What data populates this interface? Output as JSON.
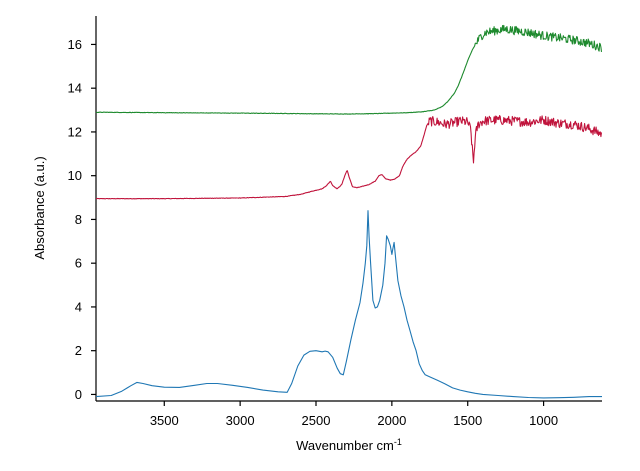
{
  "chart_data": {
    "type": "line",
    "title": "",
    "xlabel": "Wavenumber cm",
    "xlabel_superscript": "-1",
    "ylabel": "Absorbance (a.u.)",
    "xlim": [
      3950,
      615
    ],
    "ylim": [
      -0.3,
      17.3
    ],
    "x_reversed": true,
    "grid": false,
    "legend": "none",
    "x_ticks": [
      3500,
      3000,
      2500,
      2000,
      1500,
      1000
    ],
    "x_tick_labels": [
      "3500",
      "3000",
      "2500",
      "2000",
      "1500",
      "1000"
    ],
    "y_ticks": [
      0,
      2,
      4,
      6,
      8,
      10,
      12,
      14,
      16
    ],
    "y_tick_labels": [
      "0",
      "2",
      "4",
      "6",
      "8",
      "10",
      "12",
      "14",
      "16"
    ],
    "series": [
      {
        "color": "#1f77b4",
        "noise": 0.0,
        "points": [
          [
            3950,
            -0.1
          ],
          [
            3850,
            -0.05
          ],
          [
            3780,
            0.15
          ],
          [
            3720,
            0.4
          ],
          [
            3680,
            0.55
          ],
          [
            3640,
            0.5
          ],
          [
            3580,
            0.4
          ],
          [
            3500,
            0.33
          ],
          [
            3400,
            0.32
          ],
          [
            3300,
            0.42
          ],
          [
            3220,
            0.5
          ],
          [
            3150,
            0.5
          ],
          [
            3050,
            0.42
          ],
          [
            2950,
            0.32
          ],
          [
            2850,
            0.2
          ],
          [
            2750,
            0.12
          ],
          [
            2690,
            0.1
          ],
          [
            2660,
            0.5
          ],
          [
            2620,
            1.3
          ],
          [
            2580,
            1.8
          ],
          [
            2540,
            1.97
          ],
          [
            2500,
            2.0
          ],
          [
            2460,
            1.95
          ],
          [
            2440,
            1.98
          ],
          [
            2420,
            1.95
          ],
          [
            2390,
            1.7
          ],
          [
            2360,
            1.2
          ],
          [
            2340,
            0.95
          ],
          [
            2320,
            0.9
          ],
          [
            2300,
            1.5
          ],
          [
            2270,
            2.5
          ],
          [
            2240,
            3.4
          ],
          [
            2210,
            4.2
          ],
          [
            2190,
            5.1
          ],
          [
            2175,
            6.0
          ],
          [
            2165,
            6.8
          ],
          [
            2157,
            8.4
          ],
          [
            2150,
            7.2
          ],
          [
            2140,
            6.0
          ],
          [
            2125,
            4.3
          ],
          [
            2110,
            3.95
          ],
          [
            2095,
            4.0
          ],
          [
            2080,
            4.3
          ],
          [
            2060,
            5.0
          ],
          [
            2045,
            6.0
          ],
          [
            2035,
            7.25
          ],
          [
            2025,
            7.1
          ],
          [
            2010,
            6.8
          ],
          [
            2000,
            6.4
          ],
          [
            1995,
            6.6
          ],
          [
            1985,
            6.95
          ],
          [
            1975,
            6.2
          ],
          [
            1960,
            5.2
          ],
          [
            1940,
            4.5
          ],
          [
            1920,
            4.0
          ],
          [
            1900,
            3.4
          ],
          [
            1880,
            2.9
          ],
          [
            1860,
            2.4
          ],
          [
            1840,
            2.0
          ],
          [
            1820,
            1.4
          ],
          [
            1800,
            1.1
          ],
          [
            1780,
            0.9
          ],
          [
            1750,
            0.8
          ],
          [
            1700,
            0.65
          ],
          [
            1650,
            0.48
          ],
          [
            1600,
            0.3
          ],
          [
            1550,
            0.2
          ],
          [
            1500,
            0.12
          ],
          [
            1450,
            0.05
          ],
          [
            1400,
            0.0
          ],
          [
            1300,
            -0.05
          ],
          [
            1200,
            -0.1
          ],
          [
            1100,
            -0.14
          ],
          [
            1000,
            -0.16
          ],
          [
            900,
            -0.15
          ],
          [
            800,
            -0.13
          ],
          [
            700,
            -0.1
          ],
          [
            615,
            -0.1
          ]
        ]
      },
      {
        "color": "#c0143c",
        "noise": 0.22,
        "noise_from": 1760,
        "points": [
          [
            3950,
            8.95
          ],
          [
            3500,
            8.95
          ],
          [
            3000,
            8.98
          ],
          [
            2700,
            9.05
          ],
          [
            2600,
            9.15
          ],
          [
            2520,
            9.3
          ],
          [
            2460,
            9.4
          ],
          [
            2430,
            9.55
          ],
          [
            2405,
            9.75
          ],
          [
            2390,
            9.55
          ],
          [
            2360,
            9.4
          ],
          [
            2330,
            9.6
          ],
          [
            2310,
            10.0
          ],
          [
            2295,
            10.25
          ],
          [
            2280,
            9.9
          ],
          [
            2260,
            9.5
          ],
          [
            2230,
            9.45
          ],
          [
            2200,
            9.5
          ],
          [
            2150,
            9.6
          ],
          [
            2110,
            9.75
          ],
          [
            2085,
            10.0
          ],
          [
            2065,
            10.05
          ],
          [
            2040,
            9.85
          ],
          [
            2010,
            9.8
          ],
          [
            1980,
            9.85
          ],
          [
            1950,
            10.0
          ],
          [
            1930,
            10.4
          ],
          [
            1900,
            10.75
          ],
          [
            1870,
            10.95
          ],
          [
            1840,
            11.1
          ],
          [
            1810,
            11.35
          ],
          [
            1790,
            11.8
          ],
          [
            1770,
            12.3
          ],
          [
            1750,
            12.5
          ],
          [
            1700,
            12.45
          ],
          [
            1650,
            12.35
          ],
          [
            1600,
            12.4
          ],
          [
            1550,
            12.5
          ],
          [
            1500,
            12.45
          ],
          [
            1480,
            12.1
          ],
          [
            1470,
            11.2
          ],
          [
            1462,
            10.6
          ],
          [
            1455,
            11.4
          ],
          [
            1445,
            12.0
          ],
          [
            1430,
            12.35
          ],
          [
            1400,
            12.5
          ],
          [
            1300,
            12.55
          ],
          [
            1200,
            12.5
          ],
          [
            1100,
            12.45
          ],
          [
            1000,
            12.55
          ],
          [
            900,
            12.4
          ],
          [
            800,
            12.35
          ],
          [
            700,
            12.15
          ],
          [
            615,
            11.9
          ]
        ]
      },
      {
        "color": "#1e8a2e",
        "noise": 0.2,
        "noise_from": 1450,
        "points": [
          [
            3950,
            12.9
          ],
          [
            3500,
            12.88
          ],
          [
            3000,
            12.86
          ],
          [
            2500,
            12.83
          ],
          [
            2300,
            12.82
          ],
          [
            2100,
            12.84
          ],
          [
            1900,
            12.88
          ],
          [
            1800,
            12.92
          ],
          [
            1720,
            13.0
          ],
          [
            1670,
            13.15
          ],
          [
            1630,
            13.4
          ],
          [
            1590,
            13.75
          ],
          [
            1560,
            14.15
          ],
          [
            1530,
            14.7
          ],
          [
            1500,
            15.25
          ],
          [
            1470,
            15.75
          ],
          [
            1440,
            16.1
          ],
          [
            1410,
            16.4
          ],
          [
            1380,
            16.55
          ],
          [
            1340,
            16.6
          ],
          [
            1300,
            16.65
          ],
          [
            1250,
            16.7
          ],
          [
            1200,
            16.65
          ],
          [
            1100,
            16.55
          ],
          [
            1000,
            16.4
          ],
          [
            900,
            16.3
          ],
          [
            800,
            16.2
          ],
          [
            700,
            16.05
          ],
          [
            615,
            15.85
          ]
        ]
      }
    ]
  }
}
